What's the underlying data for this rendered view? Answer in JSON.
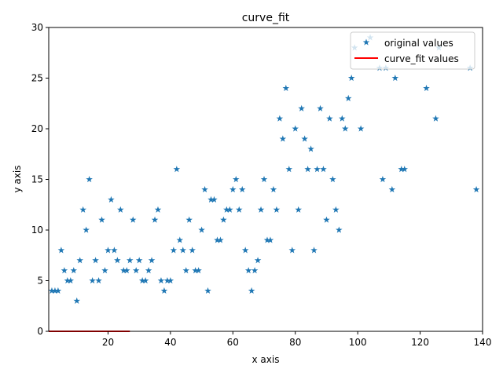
{
  "chart_data": {
    "type": "scatter",
    "title": "curve_fit",
    "xlabel": "x axis",
    "ylabel": "y axis",
    "xlim": [
      1,
      140
    ],
    "ylim": [
      0,
      30
    ],
    "xticks": [
      20,
      40,
      60,
      80,
      100,
      120,
      140
    ],
    "yticks": [
      0,
      5,
      10,
      15,
      20,
      25,
      30
    ],
    "legend_position": "top-right",
    "series": [
      {
        "name": "original values",
        "kind": "scatter",
        "marker": "star",
        "color": "#1f77b4",
        "points": [
          [
            2,
            4
          ],
          [
            3,
            4
          ],
          [
            4,
            4
          ],
          [
            5,
            8
          ],
          [
            6,
            6
          ],
          [
            7,
            5
          ],
          [
            8,
            5
          ],
          [
            9,
            6
          ],
          [
            10,
            3
          ],
          [
            11,
            7
          ],
          [
            12,
            12
          ],
          [
            13,
            10
          ],
          [
            14,
            15
          ],
          [
            15,
            5
          ],
          [
            16,
            7
          ],
          [
            17,
            5
          ],
          [
            18,
            11
          ],
          [
            19,
            6
          ],
          [
            20,
            8
          ],
          [
            21,
            13
          ],
          [
            22,
            8
          ],
          [
            23,
            7
          ],
          [
            24,
            12
          ],
          [
            25,
            6
          ],
          [
            26,
            6
          ],
          [
            27,
            7
          ],
          [
            28,
            11
          ],
          [
            29,
            6
          ],
          [
            30,
            7
          ],
          [
            31,
            5
          ],
          [
            32,
            5
          ],
          [
            33,
            6
          ],
          [
            34,
            7
          ],
          [
            35,
            11
          ],
          [
            36,
            12
          ],
          [
            37,
            5
          ],
          [
            38,
            4
          ],
          [
            39,
            5
          ],
          [
            40,
            5
          ],
          [
            41,
            8
          ],
          [
            42,
            16
          ],
          [
            43,
            9
          ],
          [
            44,
            8
          ],
          [
            45,
            6
          ],
          [
            46,
            11
          ],
          [
            47,
            8
          ],
          [
            48,
            6
          ],
          [
            49,
            6
          ],
          [
            50,
            10
          ],
          [
            51,
            14
          ],
          [
            52,
            4
          ],
          [
            53,
            13
          ],
          [
            54,
            13
          ],
          [
            55,
            9
          ],
          [
            56,
            9
          ],
          [
            57,
            11
          ],
          [
            58,
            12
          ],
          [
            59,
            12
          ],
          [
            60,
            14
          ],
          [
            61,
            15
          ],
          [
            62,
            12
          ],
          [
            63,
            14
          ],
          [
            64,
            8
          ],
          [
            65,
            6
          ],
          [
            66,
            4
          ],
          [
            67,
            6
          ],
          [
            68,
            7
          ],
          [
            69,
            12
          ],
          [
            70,
            15
          ],
          [
            71,
            9
          ],
          [
            72,
            9
          ],
          [
            73,
            14
          ],
          [
            74,
            12
          ],
          [
            75,
            21
          ],
          [
            76,
            19
          ],
          [
            77,
            24
          ],
          [
            78,
            16
          ],
          [
            79,
            8
          ],
          [
            80,
            20
          ],
          [
            81,
            12
          ],
          [
            82,
            22
          ],
          [
            83,
            19
          ],
          [
            84,
            16
          ],
          [
            85,
            18
          ],
          [
            86,
            8
          ],
          [
            87,
            16
          ],
          [
            88,
            22
          ],
          [
            89,
            16
          ],
          [
            90,
            11
          ],
          [
            91,
            21
          ],
          [
            92,
            15
          ],
          [
            93,
            12
          ],
          [
            94,
            10
          ],
          [
            95,
            21
          ],
          [
            96,
            20
          ],
          [
            97,
            23
          ],
          [
            98,
            25
          ],
          [
            99,
            28
          ],
          [
            101,
            20
          ],
          [
            104,
            29
          ],
          [
            107,
            26
          ],
          [
            108,
            15
          ],
          [
            109,
            26
          ],
          [
            111,
            14
          ],
          [
            112,
            25
          ],
          [
            114,
            16
          ],
          [
            115,
            16
          ],
          [
            122,
            24
          ],
          [
            125,
            21
          ],
          [
            126,
            28
          ],
          [
            136,
            26
          ],
          [
            138,
            14
          ]
        ]
      },
      {
        "name": "curve_fit values",
        "kind": "line",
        "color": "#ff0000",
        "points": [
          [
            1,
            0
          ],
          [
            5,
            0
          ],
          [
            10,
            0
          ],
          [
            15,
            0
          ],
          [
            20,
            0
          ],
          [
            25,
            0
          ],
          [
            27,
            0
          ]
        ]
      }
    ]
  }
}
